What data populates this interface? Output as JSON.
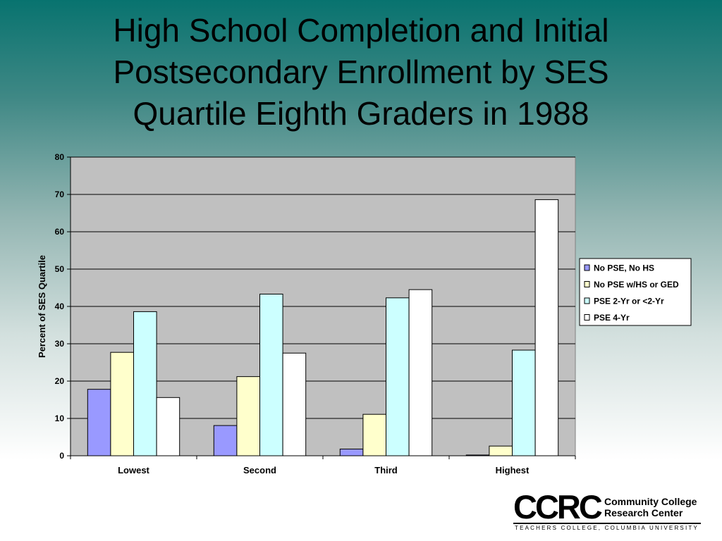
{
  "slide": {
    "title_line1": "High School Completion and Initial",
    "title_line2": "Postsecondary Enrollment by SES",
    "title_line3": "Quartile Eighth Graders in 1988"
  },
  "chart_data": {
    "type": "bar",
    "title": "",
    "xlabel": "",
    "ylabel": "Percent of SES Quartile",
    "ylim": [
      0,
      80
    ],
    "yticks": [
      0,
      10,
      20,
      30,
      40,
      50,
      60,
      70,
      80
    ],
    "grid": true,
    "legend_position": "right",
    "categories": [
      "Lowest",
      "Second",
      "Third",
      "Highest"
    ],
    "series": [
      {
        "name": "No PSE, No HS",
        "color": "#9999ff",
        "values": [
          17.8,
          8.1,
          1.8,
          0.2
        ]
      },
      {
        "name": "No PSE w/HS or GED",
        "color": "#ffffcc",
        "values": [
          27.7,
          21.2,
          11.1,
          2.6
        ]
      },
      {
        "name": "PSE 2-Yr or <2-Yr",
        "color": "#ccffff",
        "values": [
          38.6,
          43.3,
          42.3,
          28.3
        ]
      },
      {
        "name": "PSE 4-Yr",
        "color": "#ffffff",
        "values": [
          15.6,
          27.5,
          44.5,
          68.6
        ]
      }
    ],
    "plot_background": "#c0c0c0"
  },
  "logo": {
    "mark": "CCRC",
    "name_line1": "Community College",
    "name_line2": "Research Center",
    "tagline": "TEACHERS COLLEGE, COLUMBIA UNIVERSITY"
  }
}
